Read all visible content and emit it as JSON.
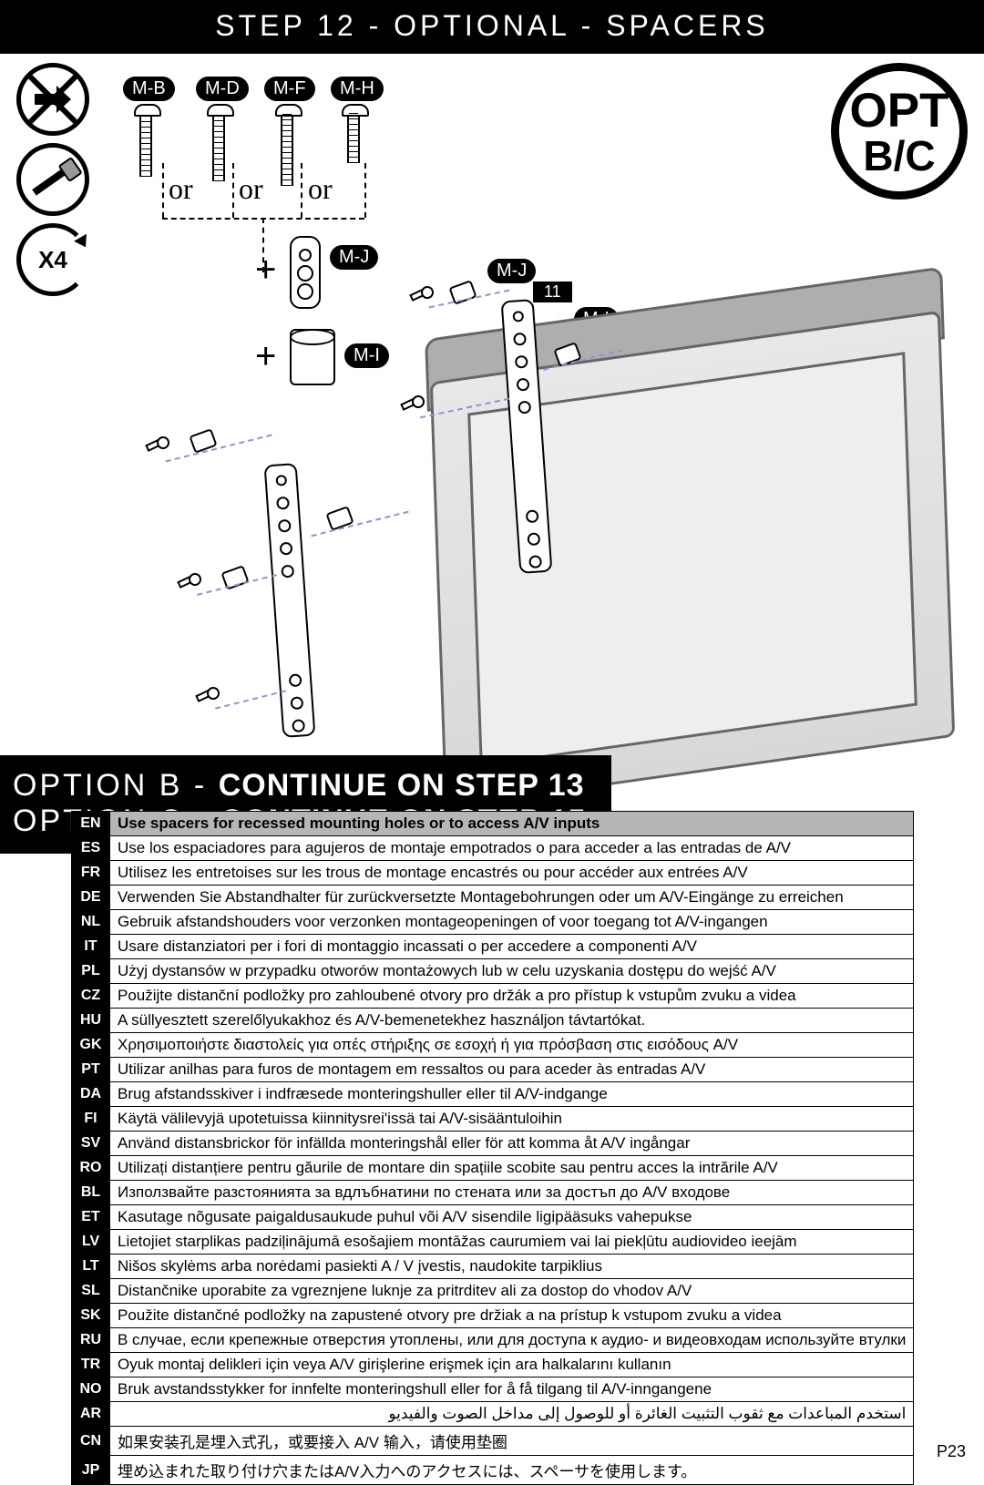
{
  "header": "STEP 12 - OPTIONAL - SPACERS",
  "opt_badge": {
    "top": "OPT",
    "bottom": "B/C"
  },
  "rotate_label": "X4",
  "parts_top": [
    "M-B",
    "M-D",
    "M-F",
    "M-H"
  ],
  "or_text": "or",
  "mid_labels": {
    "mj1": "M-J",
    "mi1": "M-I",
    "mj2": "M-J",
    "mi2": "M-I",
    "eleven": "11"
  },
  "options": {
    "b_label": "OPTION B -",
    "b_value": "CONTINUE ON STEP 13",
    "c_label": "OPTION C -",
    "c_value": "CONTINUE ON STEP 15"
  },
  "languages": [
    {
      "code": "EN",
      "text": "Use spacers for recessed mounting holes or to access A/V inputs",
      "hl": true
    },
    {
      "code": "ES",
      "text": "Use los espaciadores para agujeros de montaje empotrados o para acceder a las entradas de A/V"
    },
    {
      "code": "FR",
      "text": "Utilisez les entretoises sur les trous de montage encastrés ou pour accéder aux entrées A/V"
    },
    {
      "code": "DE",
      "text": "Verwenden Sie Abstandhalter für zurückversetzte Montagebohrungen oder um A/V-Eingänge zu erreichen"
    },
    {
      "code": "NL",
      "text": "Gebruik afstandshouders voor verzonken montageopeningen of voor toegang tot A/V-ingangen"
    },
    {
      "code": "IT",
      "text": "Usare distanziatori per i fori di montaggio incassati o per accedere a componenti A/V"
    },
    {
      "code": "PL",
      "text": "Użyj dystansów w przypadku otworów montażowych lub w celu uzyskania dostępu do wejść A/V"
    },
    {
      "code": "CZ",
      "text": "Použijte distanční podložky pro zahloubené otvory pro držák a pro přístup k vstupům zvuku a videa"
    },
    {
      "code": "HU",
      "text": "A süllyesztett szerelőlyukakhoz és A/V-bemenetekhez használjon távtartókat."
    },
    {
      "code": "GK",
      "text": "Χρησιμοποιήστε διαστολείς για οπές στήριξης σε εσοχή ή για πρόσβαση στις εισόδους A/V"
    },
    {
      "code": "PT",
      "text": "Utilizar anilhas para furos de montagem em ressaltos ou para aceder às entradas A/V"
    },
    {
      "code": "DA",
      "text": "Brug afstandsskiver i indfræsede monteringshuller eller til A/V-indgange"
    },
    {
      "code": "FI",
      "text": "Käytä välilevyjä upotetuissa kiinnitysrei'issä tai A/V-sisääntuloihin"
    },
    {
      "code": "SV",
      "text": "Använd distansbrickor för infällda monteringshål eller för att komma åt A/V ingångar"
    },
    {
      "code": "RO",
      "text": "Utilizați distanțiere pentru găurile de montare din spațiile scobite sau pentru acces la intrările A/V"
    },
    {
      "code": "BL",
      "text": "Използвайте разстоянията за вдлъбнатини по стената или за достъп до A/V входове"
    },
    {
      "code": "ET",
      "text": "Kasutage nõgusate paigaldusaukude puhul või A/V sisendile ligipääsuks vahepukse"
    },
    {
      "code": "LV",
      "text": "Lietojiet starplikas padziļinājumā esošajiem montāžas caurumiem vai lai piekļūtu audiovideo ieejām"
    },
    {
      "code": "LT",
      "text": "Nišos skylėms arba norėdami pasiekti A / V įvestis, naudokite tarpiklius"
    },
    {
      "code": "SL",
      "text": "Distančnike uporabite za vgreznjene luknje za pritrditev ali za dostop do vhodov A/V"
    },
    {
      "code": "SK",
      "text": "Použite distančné podložky na zapustené otvory pre držiak a na prístup k vstupom zvuku a videa"
    },
    {
      "code": "RU",
      "text": "В случае, если крепежные отверстия утоплены, или для доступа к аудио- и видеовходам используйте втулки"
    },
    {
      "code": "TR",
      "text": "Oyuk montaj delikleri için veya A/V girişlerine erişmek için ara halkalarını kullanın"
    },
    {
      "code": "NO",
      "text": "Bruk avstandsstykker for innfelte monteringshull eller for å få tilgang til A/V-inngangene"
    },
    {
      "code": "AR",
      "text": "استخدم المباعدات مع ثقوب التثبيت الغائرة أو للوصول إلى مداخل الصوت والفيديو",
      "rtl": true
    },
    {
      "code": "CN",
      "text": "如果安装孔是埋入式孔，或要接入 A/V 输入，请使用垫圈"
    },
    {
      "code": "JP",
      "text": "埋め込まれた取り付け穴またはA/V入力へのアクセスには、スペーサを使用します。"
    }
  ],
  "page_number": "P23",
  "colors": {
    "black": "#000000",
    "white": "#ffffff",
    "highlight_row": "#b6b6b6",
    "tv_gray": "#aeaeae",
    "dash_purple": "#9b8fc7"
  }
}
